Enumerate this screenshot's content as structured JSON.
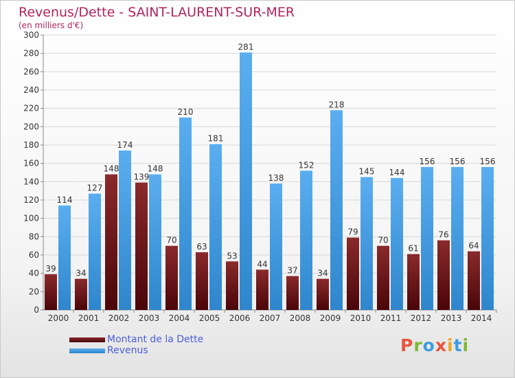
{
  "chart_data": {
    "type": "bar",
    "title": "Revenus/Dette - SAINT-LAURENT-SUR-MER",
    "subtitle": "(en milliers d'€)",
    "categories": [
      "2000",
      "2001",
      "2002",
      "2003",
      "2004",
      "2005",
      "2006",
      "2007",
      "2008",
      "2009",
      "2010",
      "2011",
      "2012",
      "2013",
      "2014"
    ],
    "series": [
      {
        "name": "Montant de la Dette",
        "color": "#6b1417",
        "values": [
          39,
          34,
          148,
          139,
          70,
          63,
          53,
          44,
          37,
          34,
          79,
          70,
          61,
          76,
          64
        ]
      },
      {
        "name": "Revenus",
        "color": "#3f9ce0",
        "values": [
          114,
          127,
          174,
          148,
          210,
          181,
          281,
          138,
          152,
          218,
          145,
          144,
          156,
          156,
          156
        ]
      }
    ],
    "ylim": [
      0,
      300
    ],
    "yticks": [
      0,
      20,
      40,
      60,
      80,
      100,
      120,
      140,
      160,
      180,
      200,
      220,
      240,
      260,
      280,
      300
    ],
    "grid": true,
    "legend_position": "bottom-left"
  },
  "logo": {
    "text": "Proxiti",
    "colors": [
      "#e8553c",
      "#7cb832",
      "#3f9ce0",
      "#e8553c",
      "#f2a61f",
      "#3f9ce0",
      "#7cb832"
    ]
  }
}
